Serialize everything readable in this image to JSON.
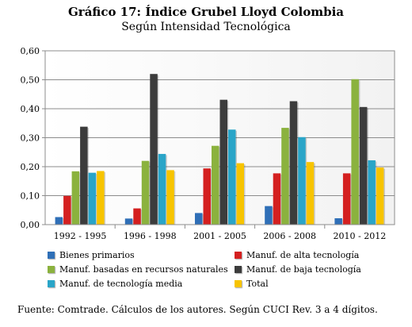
{
  "chart_data": {
    "type": "bar",
    "title": "Gráfico 17: Índice Grubel Lloyd Colombia",
    "subtitle": "Según Intensidad Tecnológica",
    "categories": [
      "1992 - 1995",
      "1996 - 1998",
      "2001 - 2005",
      "2006 - 2008",
      "2010 - 2012"
    ],
    "series": [
      {
        "name": "Bienes primarios",
        "color": "#2f6fb7",
        "values": [
          0.026,
          0.021,
          0.04,
          0.064,
          0.022
        ]
      },
      {
        "name": "Manuf. de alta tecnología",
        "color": "#d42020",
        "values": [
          0.099,
          0.056,
          0.194,
          0.177,
          0.177
        ]
      },
      {
        "name": "Manuf. basadas en recursos naturales",
        "color": "#8bb23e",
        "values": [
          0.184,
          0.22,
          0.272,
          0.334,
          0.502
        ]
      },
      {
        "name": "Manuf. de baja tecnología",
        "color": "#3c3c3c",
        "values": [
          0.338,
          0.52,
          0.431,
          0.426,
          0.406
        ]
      },
      {
        "name": "Manuf. de tecnología media",
        "color": "#2aa5c8",
        "values": [
          0.179,
          0.244,
          0.328,
          0.302,
          0.222
        ]
      },
      {
        "name": "Total",
        "color": "#f7c400",
        "values": [
          0.185,
          0.188,
          0.212,
          0.216,
          0.197
        ]
      }
    ],
    "ylim": [
      0,
      0.6
    ],
    "yticks": [
      "0,00",
      "0,10",
      "0,20",
      "0,30",
      "0,40",
      "0,50",
      "0,60"
    ],
    "grid": true,
    "legend_placement": "bottom"
  },
  "source_note": "Fuente: Comtrade. Cálculos de los autores. Según CUCI Rev. 3 a 4 dígitos."
}
